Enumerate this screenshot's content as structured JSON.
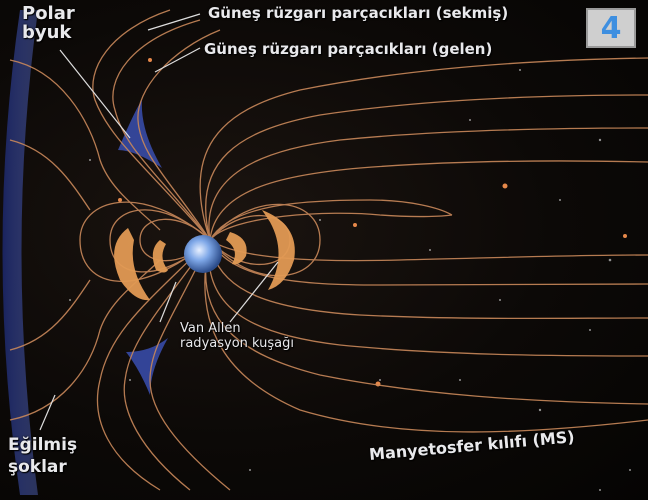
{
  "diagram": {
    "figure_number": "4",
    "labels": {
      "polar_cusp": "Polar\nbyuk",
      "solar_wind_deflected": "Güneş rüzgarı parçacıkları (sekmiş)",
      "solar_wind_incoming": "Güneş rüzgarı parçacıkları (gelen)",
      "van_allen": "Van Allen\nradyasyon kuşağı",
      "bow_shock": "Eğilmiş\nşoklar",
      "magnetosheath": "Manyetosfer kılıfı (MS)"
    },
    "colors": {
      "field_line": "#c9885a",
      "radiation_belt": "#e29a54",
      "bow_shock": "#3a4fb0",
      "earth": "#7fa8e8",
      "text": "#e9e9ec",
      "badge_text": "#3e8fe0"
    }
  }
}
